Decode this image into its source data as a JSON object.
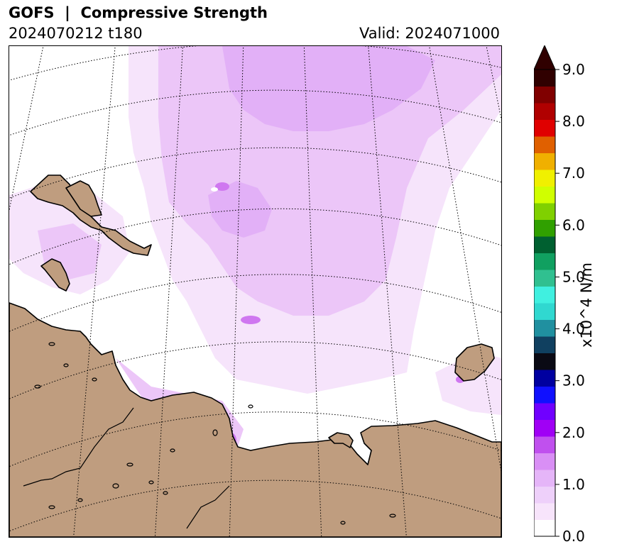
{
  "header": {
    "title": "GOFS  |  Compressive Strength",
    "run_label": "2024070212 t180",
    "valid_label": "Valid: 2024071000"
  },
  "colorbar": {
    "unit_label": "x10^4 N/m",
    "ticks": [
      "0.0",
      "1.0",
      "2.0",
      "3.0",
      "4.0",
      "5.0",
      "6.0",
      "7.0",
      "8.0",
      "9.0"
    ],
    "min": 0.0,
    "max": 9.0,
    "extend": "max",
    "colors": [
      "#ffffff",
      "#f7e4fb",
      "#eed0fa",
      "#e5b5f8",
      "#d98ff5",
      "#c050ee",
      "#a000f5",
      "#7000ff",
      "#1010ff",
      "#0000a0",
      "#0a0a14",
      "#104060",
      "#2090a0",
      "#30d8d0",
      "#40f0e0",
      "#30c090",
      "#10a060",
      "#006030",
      "#30a000",
      "#80d000",
      "#d0ff00",
      "#f0f000",
      "#f0b000",
      "#e06000",
      "#e00000",
      "#b00000",
      "#800000",
      "#300000"
    ]
  },
  "map": {
    "land_color": "#bf9d7f",
    "graticule_style": "dotted",
    "ice_color_light": "#f6e4fb",
    "ice_color_mid": "#ecc6f8",
    "ice_color_strong": "#e2b0f7",
    "ice_color_peak": "#cf77f0"
  }
}
